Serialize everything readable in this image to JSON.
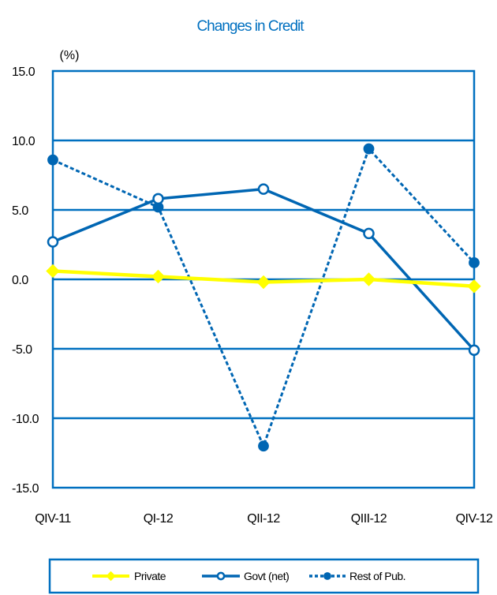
{
  "chart_data": {
    "type": "line",
    "title": "Changes in Credit",
    "ylabel": "(%)",
    "xlabel": "",
    "categories": [
      "QIV-11",
      "QI-12",
      "QII-12",
      "QIII-12",
      "QIV-12"
    ],
    "ylim": [
      -15.0,
      15.0
    ],
    "yticks": [
      "15.0",
      "10.0",
      "5.0",
      "0.0",
      "-5.0",
      "-10.0",
      "-15.0"
    ],
    "ytick_values": [
      15,
      10,
      5,
      0,
      -5,
      -10,
      -15
    ],
    "grid": true,
    "legend_position": "bottom",
    "series": [
      {
        "name": "Private",
        "values": [
          0.6,
          0.2,
          -0.2,
          0.0,
          -0.5
        ],
        "color": "#ffff00",
        "marker": "diamond",
        "dash": "solid"
      },
      {
        "name": "Govt (net)",
        "values": [
          2.7,
          5.8,
          6.5,
          3.3,
          -5.1
        ],
        "color": "#0066b3",
        "marker": "open-circle",
        "dash": "solid"
      },
      {
        "name": "Rest of Pub.",
        "values": [
          8.6,
          5.2,
          -12.0,
          9.4,
          1.2
        ],
        "color": "#0066b3",
        "marker": "filled-circle",
        "dash": "dashed"
      }
    ],
    "colors": {
      "title": "#0070c0",
      "axis": "#0070c0",
      "grid": "#0070c0"
    }
  }
}
